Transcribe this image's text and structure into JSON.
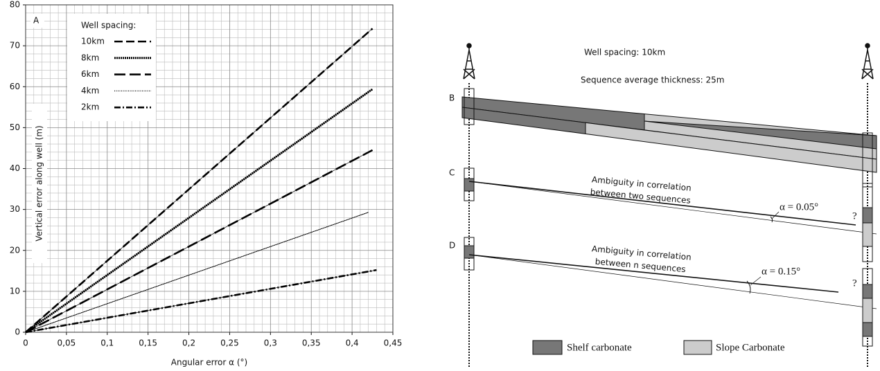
{
  "chart_data": {
    "type": "line",
    "panel_label": "A",
    "x_label": "Angular error  α (°)",
    "y_label": "Vertical error  along well (m)",
    "legend_title": "Well spacing:",
    "legend_position": "upper left",
    "grid": true,
    "minor_grid": true,
    "xlim": [
      0,
      0.45
    ],
    "ylim": [
      0,
      80
    ],
    "xticks": [
      {
        "value": 0,
        "label": "0"
      },
      {
        "value": 0.05,
        "label": "0,05"
      },
      {
        "value": 0.1,
        "label": "0,1"
      },
      {
        "value": 0.15,
        "label": "0,15"
      },
      {
        "value": 0.2,
        "label": "0,2"
      },
      {
        "value": 0.25,
        "label": "0,25"
      },
      {
        "value": 0.3,
        "label": "0,3"
      },
      {
        "value": 0.35,
        "label": "0,35"
      },
      {
        "value": 0.4,
        "label": "0,4"
      },
      {
        "value": 0.45,
        "label": "0,45"
      }
    ],
    "yticks": [
      0,
      10,
      20,
      30,
      40,
      50,
      60,
      70,
      80
    ],
    "series": [
      {
        "name": "10km",
        "color": "#000000",
        "style": "dashed",
        "x": [
          0,
          0.425
        ],
        "values": [
          0,
          74.2
        ]
      },
      {
        "name": "8km",
        "color": "#000000",
        "style": "dotted",
        "x": [
          0,
          0.425
        ],
        "values": [
          0,
          59.4
        ]
      },
      {
        "name": "6km",
        "color": "#000000",
        "style": "long-dashed",
        "x": [
          0,
          0.425
        ],
        "values": [
          0,
          44.5
        ]
      },
      {
        "name": "4km",
        "color": "#000000",
        "style": "fine-dotted",
        "x": [
          0,
          0.42
        ],
        "values": [
          0,
          29.3
        ]
      },
      {
        "name": "2km",
        "color": "#000000",
        "style": "dash-dot",
        "x": [
          0,
          0.43
        ],
        "values": [
          0,
          15.2
        ]
      }
    ]
  },
  "diagram": {
    "well_spacing": "Well spacing:  10km",
    "thickness": "Sequence average thickness:  25m",
    "panels": [
      {
        "label": "B"
      },
      {
        "label": "C",
        "caption": [
          "Ambiguity in correlation",
          "between two sequences"
        ],
        "angle": "α = 0.05°",
        "question": "?"
      },
      {
        "label": "D",
        "caption": [
          "Ambiguity in correlation",
          "between n sequences"
        ],
        "angle": "α = 0.15°",
        "question": "?"
      }
    ],
    "legend": [
      "Shelf carbonate",
      "Slope Carbonate"
    ]
  }
}
